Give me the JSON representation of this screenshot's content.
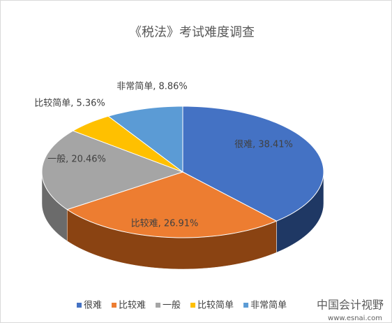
{
  "chart_data": {
    "type": "pie",
    "title": "《税法》考试难度调查",
    "categories": [
      "很难",
      "比较难",
      "一般",
      "比较简单",
      "非常简单"
    ],
    "values": [
      38.41,
      26.91,
      20.46,
      5.36,
      8.86
    ],
    "value_labels": [
      "很难, 38.41%",
      "比较难, 26.91%",
      "一般, 20.46%",
      "比较简单, 5.36%",
      "非常简单, 8.86%"
    ],
    "colors": [
      "#4472c4",
      "#ed7d31",
      "#a5a5a5",
      "#ffc000",
      "#5b9bd5"
    ],
    "side_colors": [
      "#1f3864",
      "#8a4312",
      "#6b6b6b",
      "#a07a00",
      "#2e6090"
    ],
    "legend": "bottom",
    "watermark": [
      "中国会计视野",
      "www.esnai.com"
    ]
  }
}
